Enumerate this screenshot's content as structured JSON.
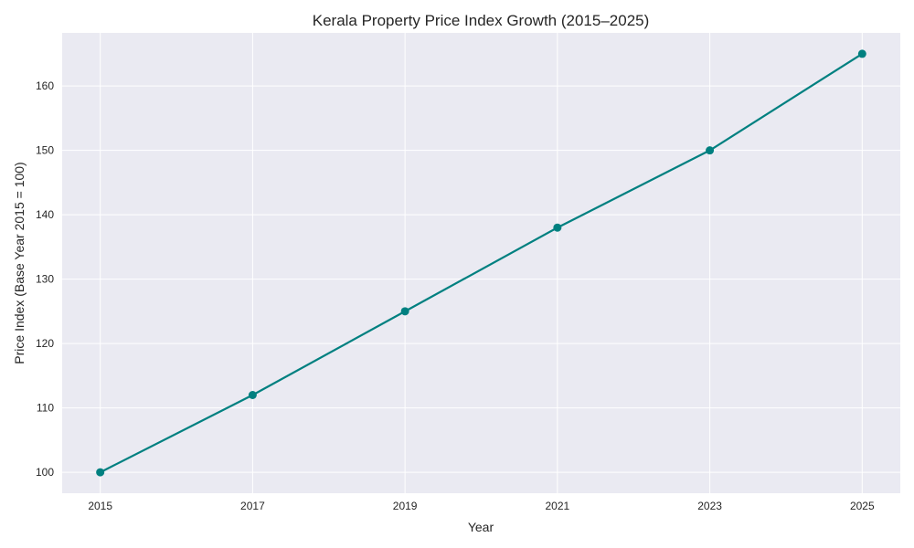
{
  "chart_data": {
    "type": "line",
    "title": "Kerala Property Price Index Growth (2015–2025)",
    "xlabel": "Year",
    "ylabel": "Price Index (Base Year 2015 = 100)",
    "x": [
      2015,
      2017,
      2019,
      2021,
      2023,
      2025
    ],
    "series": [
      {
        "name": "Price Index",
        "values": [
          100,
          112,
          125,
          138,
          150,
          165
        ],
        "color": "#008080",
        "marker": "circle"
      }
    ],
    "xticks": [
      "2015",
      "2017",
      "2019",
      "2021",
      "2023",
      "2025"
    ],
    "yticks": [
      "100",
      "110",
      "120",
      "130",
      "140",
      "150",
      "160"
    ],
    "xlim": [
      2014.5,
      2025.5
    ],
    "ylim": [
      96.75,
      168.25
    ],
    "grid": true,
    "background": "#eaeaf2"
  }
}
